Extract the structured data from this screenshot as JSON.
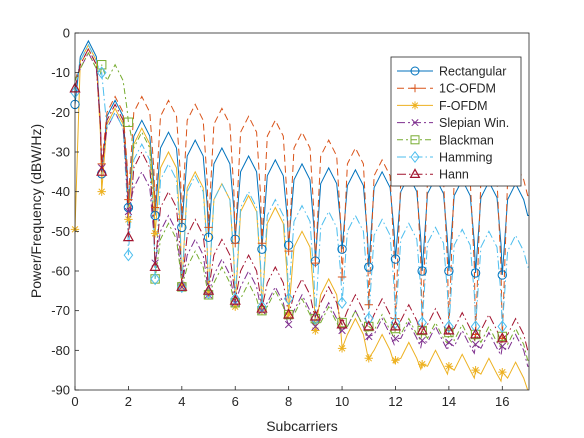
{
  "chart_data": {
    "type": "line",
    "xlabel": "Subcarriers",
    "ylabel": "Power/Frequency (dBW/Hz)",
    "xlim": [
      0,
      17
    ],
    "ylim": [
      -90,
      0
    ],
    "xticks": [
      0,
      2,
      4,
      6,
      8,
      10,
      12,
      14,
      16
    ],
    "yticks": [
      0,
      -10,
      -20,
      -30,
      -40,
      -50,
      -60,
      -70,
      -80,
      -90
    ],
    "grid": false,
    "legend_position": "top-right",
    "series": [
      {
        "name": "Rectangular",
        "color": "#0072BD",
        "dash": "solid",
        "marker": "circle",
        "marker_x": [
          0,
          1,
          2,
          3,
          4,
          5,
          6,
          7,
          8,
          9,
          10,
          11,
          12,
          13,
          14,
          15,
          16
        ],
        "marker_y": [
          -18,
          -35.5,
          -44,
          -46,
          -49,
          -51.5,
          -52,
          -54.5,
          -53.5,
          -57.5,
          -54.5,
          -59,
          -57,
          -60,
          -60,
          -60.5,
          -61
        ],
        "peaks": [
          -2,
          -17,
          -22,
          -25,
          -27,
          -29,
          -31,
          -32,
          -33,
          -34,
          -34.5,
          -35,
          -36,
          -36.5,
          -37,
          -37.5,
          -38,
          -38
        ]
      },
      {
        "name": "1C-OFDM",
        "color": "#D95319",
        "dash": "7 4",
        "marker": "plus",
        "marker_x": [
          1,
          2,
          3,
          4,
          5,
          6,
          7,
          8,
          9,
          10,
          11,
          12,
          13,
          14,
          15,
          16
        ],
        "marker_y": [
          -33,
          -42,
          -44,
          -47,
          -49,
          -53,
          -53,
          -55,
          -58,
          -61.5,
          -68.5,
          -72,
          -74,
          -75,
          -76,
          -77
        ],
        "peaks": [
          -4,
          -16,
          -16,
          -17,
          -18,
          -19,
          -21,
          -22,
          -25,
          -27,
          -29,
          -32,
          -33
        ]
      },
      {
        "name": "F-OFDM",
        "color": "#EDB120",
        "dash": "solid",
        "marker": "asterisk",
        "marker_x": [
          0,
          1,
          2,
          3,
          4,
          5,
          6,
          7,
          8,
          9,
          10,
          11,
          12,
          13,
          14,
          15,
          16
        ],
        "marker_y": [
          -49.5,
          -40,
          -47,
          -50.5,
          -63.5,
          -65.5,
          -69,
          -70,
          -71,
          -75,
          -79.5,
          -82,
          -82.5,
          -83.5,
          -84,
          -85,
          -85.5
        ],
        "peaks": [
          -3,
          -19,
          -24,
          -30,
          -35,
          -38,
          -41,
          -44,
          -50,
          -62,
          -72,
          -76,
          -78,
          -80,
          -81,
          -82,
          -83,
          -84
        ]
      },
      {
        "name": "Slepian Win.",
        "color": "#7E2F8E",
        "dash": "8 3 2 3",
        "marker": "x",
        "marker_x": [
          1,
          2,
          3,
          4,
          5,
          6,
          7,
          8,
          9,
          10,
          11,
          12,
          13,
          14,
          15,
          16
        ],
        "marker_y": [
          -34,
          -45,
          -58,
          -64,
          -66,
          -68,
          -70,
          -73.5,
          -74,
          -75,
          -76.5,
          -77,
          -77.5,
          -78,
          -78.5,
          -79
        ],
        "peaks": [
          -5,
          -20,
          -35,
          -46,
          -52,
          -57,
          -60,
          -64,
          -66,
          -68,
          -70,
          -72,
          -73,
          -74,
          -75,
          -75.5,
          -76
        ]
      },
      {
        "name": "Blackman",
        "color": "#77AC30",
        "dash": "6 3 2 3",
        "marker": "square",
        "marker_x": [
          1,
          2,
          3,
          4,
          5,
          6,
          7,
          8,
          9,
          10,
          11,
          12,
          13,
          14,
          15,
          16
        ],
        "marker_y": [
          -8,
          -22.5,
          -62,
          -64,
          -66,
          -68,
          -70,
          -71,
          -72,
          -73,
          -74,
          -74.5,
          -75,
          -75.5,
          -76,
          -76.5
        ],
        "peaks": [
          -5,
          -8,
          -25,
          -48,
          -55,
          -59,
          -63,
          -65,
          -67,
          -69,
          -70,
          -71,
          -72,
          -73,
          -73.5,
          -74,
          -74.5
        ]
      },
      {
        "name": "Hamming",
        "color": "#4DBEEE",
        "dash": "9 3 1.5 3",
        "marker": "diamond",
        "marker_x": [
          0,
          1,
          2,
          3,
          4,
          5,
          6,
          7,
          8,
          9,
          10,
          11,
          12,
          13,
          14,
          15,
          16
        ],
        "marker_y": [
          -15,
          -10,
          -56,
          -62,
          -64,
          -65.5,
          -67,
          -69,
          -67,
          -72,
          -68,
          -72,
          -73,
          -73,
          -74,
          -74,
          -74
        ],
        "peaks": [
          -3,
          -20,
          -28,
          -33,
          -36,
          -38,
          -40,
          -42,
          -43.5,
          -45,
          -46,
          -47,
          -48,
          -49,
          -49.5,
          -50,
          -51
        ]
      },
      {
        "name": "Hann",
        "color": "#A2142F",
        "dash": "9 3 1.5 3",
        "marker": "triangle",
        "marker_x": [
          0,
          1,
          2,
          3,
          4,
          5,
          6,
          7,
          8,
          9,
          10,
          11,
          12,
          13,
          14,
          15,
          16
        ],
        "marker_y": [
          -14,
          -35,
          -51.5,
          -59,
          -64,
          -65,
          -67.5,
          -69.5,
          -71,
          -71.5,
          -73.5,
          -74,
          -74,
          -75,
          -75,
          -76,
          -77
        ],
        "peaks": [
          -4,
          -18,
          -30,
          -40,
          -47,
          -52,
          -56,
          -59,
          -62,
          -64,
          -66,
          -67,
          -68.5,
          -69.5,
          -70.5,
          -71,
          -72
        ]
      }
    ]
  }
}
